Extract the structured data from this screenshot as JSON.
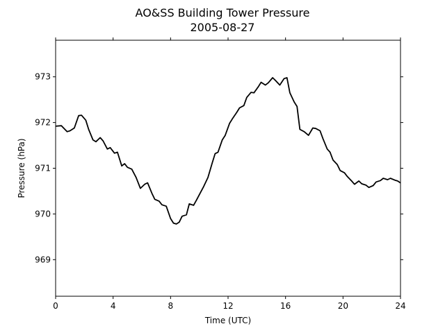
{
  "chart_data": {
    "type": "line",
    "title": "AO&SS Building Tower Pressure",
    "subtitle": "2005-08-27",
    "xlabel": "Time (UTC)",
    "ylabel": "Pressure (hPa)",
    "xlim": [
      0,
      24
    ],
    "ylim": [
      968.2,
      973.8
    ],
    "x_ticks": [
      0,
      4,
      8,
      12,
      16,
      20,
      24
    ],
    "y_ticks": [
      969,
      970,
      971,
      972,
      973
    ],
    "grid": false,
    "legend": "none",
    "colors": {
      "line": "#000000",
      "axes": "#000000",
      "background": "#ffffff"
    },
    "series": [
      {
        "x": [
          0,
          0.4,
          0.8,
          1.0,
          1.3,
          1.6,
          1.8,
          2.1,
          2.3,
          2.6,
          2.8,
          3.1,
          3.3,
          3.6,
          3.8,
          4.1,
          4.3,
          4.6,
          4.8,
          5.0,
          5.3,
          5.6,
          5.9,
          6.2,
          6.4,
          6.7,
          6.9,
          7.2,
          7.4,
          7.7,
          8.0,
          8.2,
          8.4,
          8.6,
          8.8,
          9.1,
          9.3,
          9.6,
          9.8,
          10.1,
          10.3,
          10.6,
          10.9,
          11.1,
          11.3,
          11.6,
          11.8,
          12.1,
          12.3,
          12.6,
          12.8,
          13.1,
          13.3,
          13.6,
          13.8,
          14.1,
          14.3,
          14.6,
          14.8,
          15.1,
          15.3,
          15.6,
          15.9,
          16.1,
          16.3,
          16.6,
          16.8,
          17.0,
          17.3,
          17.6,
          17.9,
          18.1,
          18.4,
          18.6,
          18.9,
          19.1,
          19.3,
          19.6,
          19.8,
          20.1,
          20.3,
          20.6,
          20.8,
          21.1,
          21.3,
          21.6,
          21.8,
          22.1,
          22.3,
          22.6,
          22.8,
          23.1,
          23.3,
          23.6,
          23.8,
          24.0
        ],
        "y": [
          971.92,
          971.93,
          971.8,
          971.82,
          971.88,
          972.15,
          972.16,
          972.05,
          971.85,
          971.62,
          971.58,
          971.67,
          971.6,
          971.42,
          971.45,
          971.33,
          971.35,
          971.05,
          971.1,
          971.02,
          970.98,
          970.8,
          970.56,
          970.65,
          970.68,
          970.45,
          970.32,
          970.28,
          970.2,
          970.17,
          969.9,
          969.8,
          969.78,
          969.82,
          969.95,
          969.98,
          970.22,
          970.19,
          970.3,
          970.48,
          970.6,
          970.8,
          971.12,
          971.32,
          971.35,
          971.62,
          971.72,
          971.98,
          972.08,
          972.22,
          972.32,
          972.37,
          972.55,
          972.66,
          972.65,
          972.78,
          972.88,
          972.82,
          972.87,
          972.98,
          972.92,
          972.82,
          972.96,
          972.98,
          972.65,
          972.45,
          972.35,
          971.85,
          971.8,
          971.72,
          971.88,
          971.87,
          971.82,
          971.65,
          971.42,
          971.35,
          971.18,
          971.08,
          970.95,
          970.9,
          970.82,
          970.72,
          970.65,
          970.72,
          970.66,
          970.63,
          970.58,
          970.62,
          970.7,
          970.73,
          970.78,
          970.75,
          970.78,
          970.74,
          970.72,
          970.68
        ]
      }
    ]
  }
}
